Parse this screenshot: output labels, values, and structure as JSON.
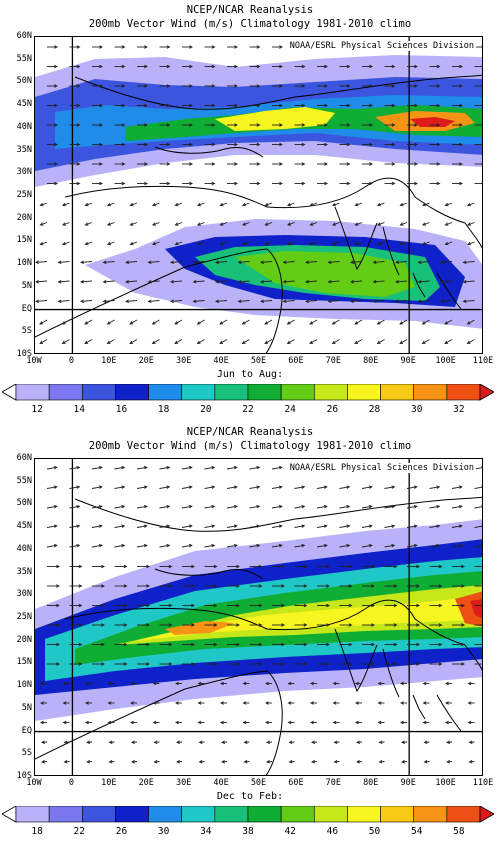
{
  "panels": [
    {
      "title_line1": "NCEP/NCAR Reanalysis",
      "title_line2": "200mb Vector Wind (m/s) Climatology 1981-2010 climo",
      "credit": "NOAA/ESRL Physical Sciences Division",
      "season": "Jun to Aug:",
      "colorbar_labels": [
        "12",
        "14",
        "16",
        "18",
        "20",
        "22",
        "24",
        "26",
        "28",
        "30",
        "32"
      ],
      "colors": [
        "#ffffff",
        "#b9b2f8",
        "#7b78ef",
        "#3c55df",
        "#0f22c9",
        "#1e8ce8",
        "#20c7c7",
        "#18c07a",
        "#0fad34",
        "#63cd15",
        "#c6e81b",
        "#f7f51f",
        "#f8ca16",
        "#f79416",
        "#ed4f14",
        "#dd1b1b"
      ]
    },
    {
      "title_line1": "NCEP/NCAR Reanalysis",
      "title_line2": "200mb Vector Wind (m/s) Climatology 1981-2010 climo",
      "credit": "NOAA/ESRL Physical Sciences Division",
      "season": "Dec to Feb:",
      "colorbar_labels": [
        "18",
        "22",
        "26",
        "30",
        "34",
        "38",
        "42",
        "46",
        "50",
        "54",
        "58"
      ],
      "colors": [
        "#ffffff",
        "#b9b2f8",
        "#7b78ef",
        "#3c55df",
        "#0f22c9",
        "#1e8ce8",
        "#20c7c7",
        "#18c07a",
        "#0fad34",
        "#63cd15",
        "#c6e81b",
        "#f7f51f",
        "#f8ca16",
        "#f79416",
        "#ed4f14",
        "#dd1b1b"
      ]
    }
  ],
  "lat_labels": [
    "60N",
    "55N",
    "50N",
    "45N",
    "40N",
    "35N",
    "30N",
    "25N",
    "20N",
    "15N",
    "10N",
    "5N",
    "EQ",
    "5S",
    "10S"
  ],
  "lon_labels": [
    "10W",
    "0",
    "10E",
    "20E",
    "30E",
    "40E",
    "50E",
    "60E",
    "70E",
    "80E",
    "90E",
    "100E",
    "110E"
  ]
}
